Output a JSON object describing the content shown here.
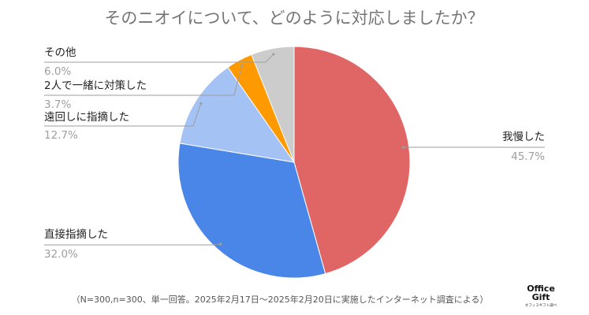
{
  "chart_data": {
    "type": "pie",
    "title": "そのニオイについて、どのように対応しましたか？",
    "categories": [
      "我慢した",
      "直接指摘した",
      "遠回しに指摘した",
      "2人で一緒に対策した",
      "その他"
    ],
    "values": [
      45.7,
      32.0,
      12.7,
      3.7,
      6.0
    ],
    "value_labels": [
      "45.7%",
      "32.0%",
      "12.7%",
      "3.7%",
      "6.0%"
    ],
    "colors": [
      "#e06666",
      "#4a86e8",
      "#a4c2f4",
      "#ff9900",
      "#cccccc"
    ],
    "start": "top",
    "direction": "clockwise",
    "legend": "none"
  },
  "footnote": "（N=300,n=300、単一回答。2025年2月17日〜2025年2月20日に実施したインターネット調査による）",
  "logo": {
    "line1": "Office",
    "line2": "Gift",
    "tagline": "オフィスギフト調べ"
  }
}
